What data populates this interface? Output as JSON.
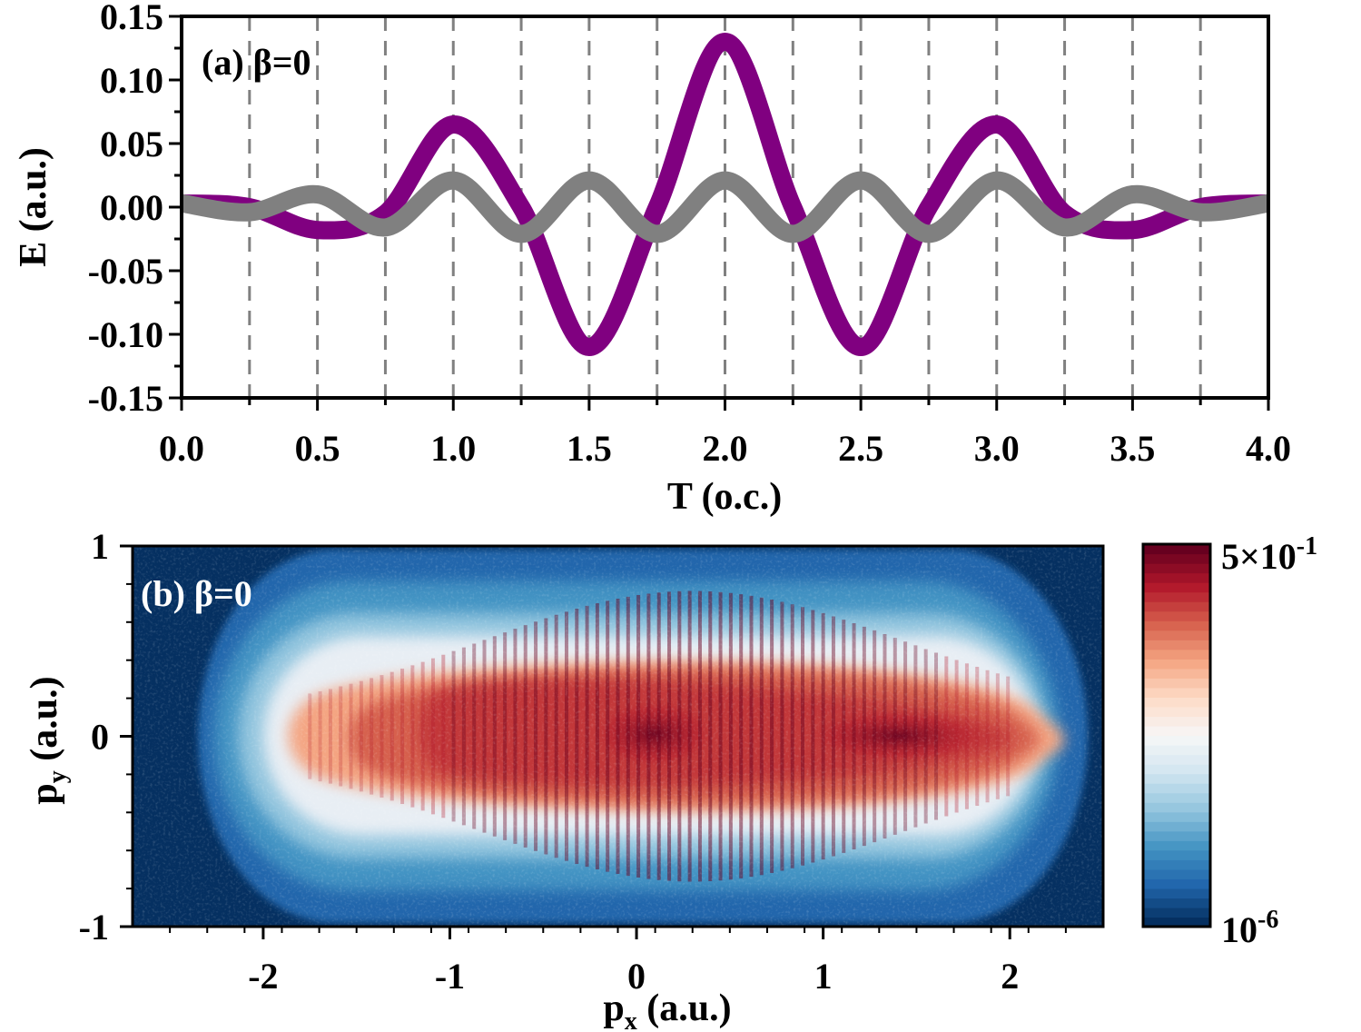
{
  "chart_data": [
    {
      "type": "line",
      "panel_label": "(a) β=0",
      "xlabel": "T (o.c.)",
      "ylabel": "E (a.u.)",
      "xlim": [
        0,
        4
      ],
      "ylim": [
        -0.15,
        0.15
      ],
      "xticks": [
        "0.0",
        "0.5",
        "1.0",
        "1.5",
        "2.0",
        "2.5",
        "3.0",
        "3.5",
        "4.0"
      ],
      "yticks": [
        "0.15",
        "0.10",
        "0.05",
        "0.00",
        "-0.05",
        "-0.10",
        "-0.15"
      ],
      "dashed_vlines": [
        0.25,
        0.5,
        0.75,
        1.0,
        1.25,
        1.5,
        1.75,
        2.0,
        2.25,
        2.5,
        2.75,
        3.0,
        3.25,
        3.5,
        3.75
      ],
      "series": [
        {
          "name": "purple field",
          "color": "#800080",
          "x": [
            0.0,
            0.25,
            0.5,
            0.75,
            1.0,
            1.25,
            1.5,
            1.75,
            2.0,
            2.25,
            2.5,
            2.75,
            3.0,
            3.25,
            3.5,
            3.75,
            4.0
          ],
          "y": [
            0.003,
            0.0,
            -0.018,
            -0.005,
            0.065,
            0.0,
            -0.11,
            0.0,
            0.13,
            0.0,
            -0.11,
            0.0,
            0.065,
            -0.005,
            -0.018,
            0.0,
            0.003
          ]
        },
        {
          "name": "gray field",
          "color": "#808080",
          "x": [
            0.0,
            0.25,
            0.5,
            0.75,
            1.0,
            1.25,
            1.5,
            1.75,
            2.0,
            2.25,
            2.5,
            2.75,
            3.0,
            3.25,
            3.5,
            3.75,
            4.0
          ],
          "y": [
            0.003,
            -0.004,
            0.01,
            -0.016,
            0.021,
            -0.021,
            0.021,
            -0.021,
            0.021,
            -0.021,
            0.021,
            -0.021,
            0.021,
            -0.016,
            0.01,
            -0.004,
            0.003
          ]
        }
      ]
    },
    {
      "type": "heatmap",
      "panel_label": "(b) β=0",
      "xlabel": "p",
      "xlabel_sub": "x",
      "xlabel_unit": " (a.u.)",
      "ylabel": "p",
      "ylabel_sub": "y",
      "ylabel_unit": " (a.u.)",
      "xlim": [
        -2.7,
        2.5
      ],
      "ylim": [
        -1,
        1
      ],
      "xticks": [
        "-2",
        "-1",
        "0",
        "1",
        "2"
      ],
      "yticks": [
        "1",
        "0",
        "-1"
      ],
      "colorbar": {
        "scale": "log",
        "max_label": "5×10",
        "max_exp": "-1",
        "min_label": "10",
        "min_exp": "-6",
        "colors": [
          "#053061",
          "#2166ac",
          "#4393c3",
          "#92c5de",
          "#d1e5f0",
          "#f7f7f7",
          "#fddbc7",
          "#f4a582",
          "#d6604d",
          "#b2182b",
          "#67001f"
        ]
      },
      "distribution": {
        "px_range": [
          -2.35,
          2.35
        ],
        "py_halfwidth": 0.9,
        "peak_px": 1.3,
        "peak_py": 0.0,
        "description": "log-scale momentum distribution, strongest along py=0"
      }
    }
  ]
}
